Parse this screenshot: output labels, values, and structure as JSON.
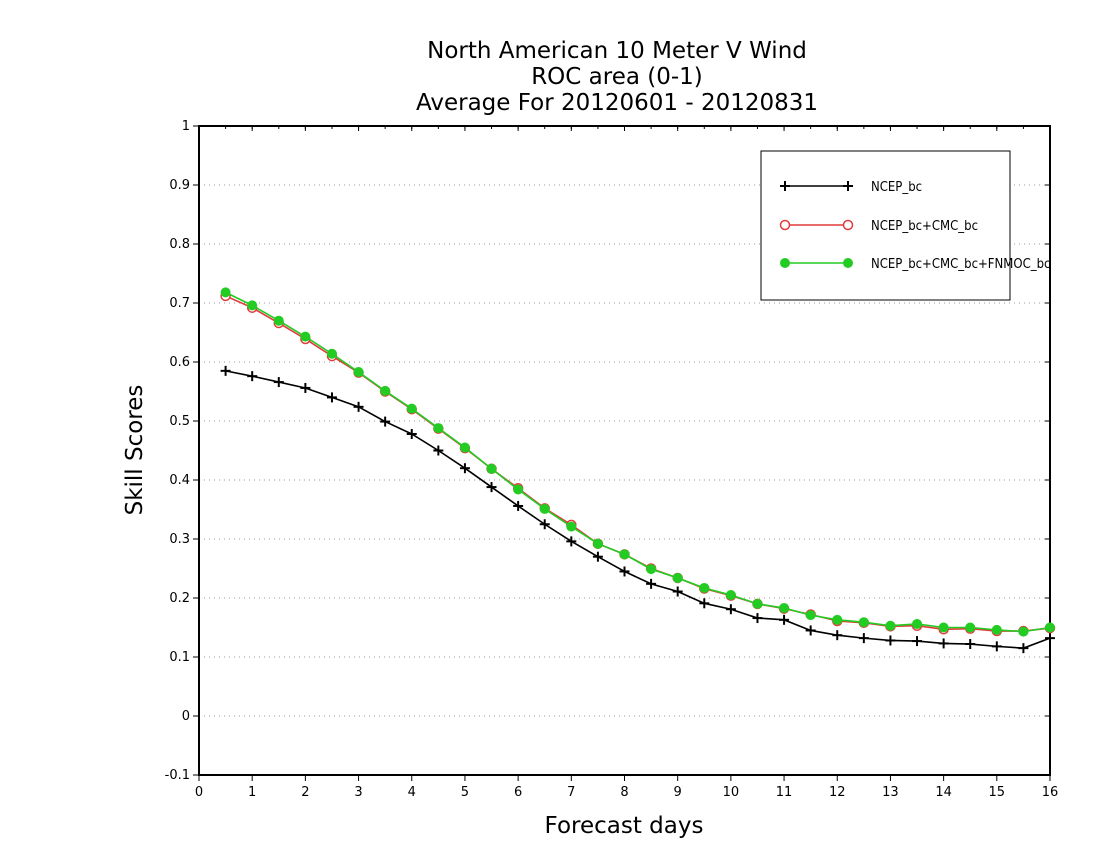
{
  "chart_data": {
    "type": "line",
    "title": [
      "North American 10 Meter V Wind",
      "ROC area (0-1)",
      "Average For 20120601 - 20120831"
    ],
    "xlabel": "Forecast days",
    "ylabel": "Skill Scores",
    "xlim": [
      0,
      16
    ],
    "ylim": [
      -0.1,
      1
    ],
    "xticks": [
      0,
      1,
      2,
      3,
      4,
      5,
      6,
      7,
      8,
      9,
      10,
      11,
      12,
      13,
      14,
      15,
      16
    ],
    "yticks": [
      -0.1,
      0,
      0.1,
      0.2,
      0.3,
      0.4,
      0.5,
      0.6,
      0.7,
      0.8,
      0.9,
      1
    ],
    "ytick_labels": [
      "-0.1",
      "0",
      "0.1",
      "0.2",
      "0.3",
      "0.4",
      "0.5",
      "0.6",
      "0.7",
      "0.8",
      "0.9",
      "1"
    ],
    "grid": "horizontal-dotted",
    "legend_position": "top-right",
    "x": [
      0.5,
      1,
      1.5,
      2,
      2.5,
      3,
      3.5,
      4,
      4.5,
      5,
      5.5,
      6,
      6.5,
      7,
      7.5,
      8,
      8.5,
      9,
      9.5,
      10,
      10.5,
      11,
      11.5,
      12,
      12.5,
      13,
      13.5,
      14,
      14.5,
      15,
      15.5,
      16
    ],
    "series": [
      {
        "name": "NCEP_bc",
        "color": "#000000",
        "marker": "plus",
        "values": [
          0.585,
          0.576,
          0.566,
          0.556,
          0.54,
          0.524,
          0.499,
          0.478,
          0.45,
          0.42,
          0.388,
          0.356,
          0.325,
          0.296,
          0.27,
          0.245,
          0.224,
          0.211,
          0.191,
          0.181,
          0.166,
          0.163,
          0.145,
          0.137,
          0.132,
          0.128,
          0.127,
          0.123,
          0.122,
          0.118,
          0.115,
          0.132
        ]
      },
      {
        "name": "NCEP_bc+CMC_bc",
        "color": "#e03c3c",
        "marker": "open-circle",
        "values": [
          0.712,
          0.692,
          0.666,
          0.639,
          0.61,
          0.582,
          0.55,
          0.52,
          0.487,
          0.454,
          0.419,
          0.386,
          0.352,
          0.324,
          0.292,
          0.274,
          0.25,
          0.234,
          0.216,
          0.204,
          0.19,
          0.182,
          0.172,
          0.161,
          0.158,
          0.152,
          0.153,
          0.147,
          0.148,
          0.144,
          0.144,
          0.149
        ]
      },
      {
        "name": "NCEP_bc+CMC_bc+FNMOC_bc",
        "color": "#22cc22",
        "marker": "filled-circle",
        "values": [
          0.718,
          0.696,
          0.67,
          0.643,
          0.614,
          0.583,
          0.551,
          0.521,
          0.488,
          0.455,
          0.419,
          0.384,
          0.351,
          0.321,
          0.292,
          0.274,
          0.249,
          0.234,
          0.217,
          0.205,
          0.19,
          0.183,
          0.171,
          0.163,
          0.159,
          0.153,
          0.156,
          0.15,
          0.15,
          0.146,
          0.143,
          0.15
        ]
      }
    ]
  }
}
